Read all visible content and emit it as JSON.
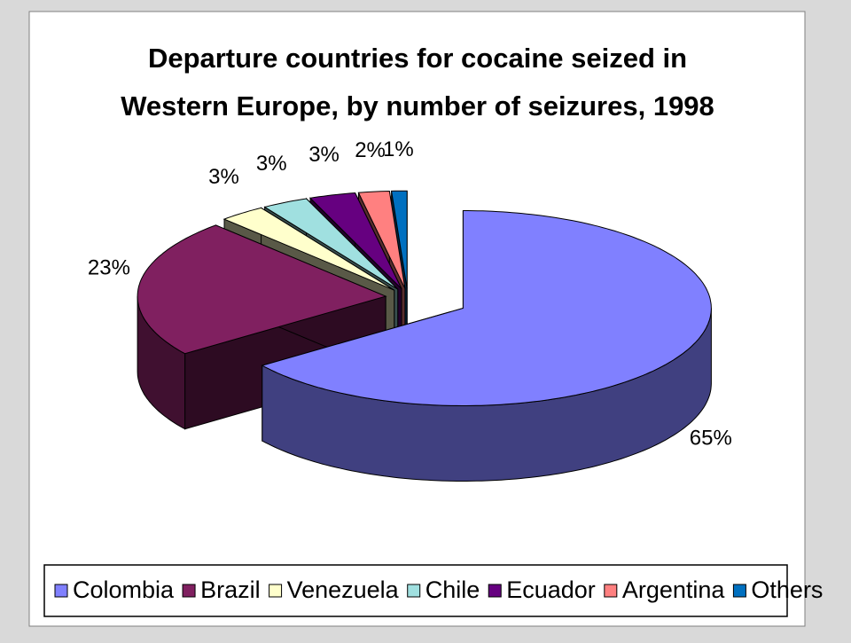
{
  "chart_data": {
    "type": "pie",
    "title": [
      "Departure countries for cocaine seized in",
      "Western Europe, by number of seizures, 1998"
    ],
    "categories": [
      "Colombia",
      "Brazil",
      "Venezuela",
      "Chile",
      "Ecuador",
      "Argentina",
      "Others"
    ],
    "values": [
      65,
      23,
      3,
      3,
      3,
      2,
      1
    ],
    "value_labels": [
      "65%",
      "23%",
      "3%",
      "3%",
      "3%",
      "2%",
      "1%"
    ],
    "colors": [
      "#8080ff",
      "#802060",
      "#ffffcc",
      "#a0e0e0",
      "#660080",
      "#ff8080",
      "#0070c0"
    ],
    "legend": "bottom"
  }
}
